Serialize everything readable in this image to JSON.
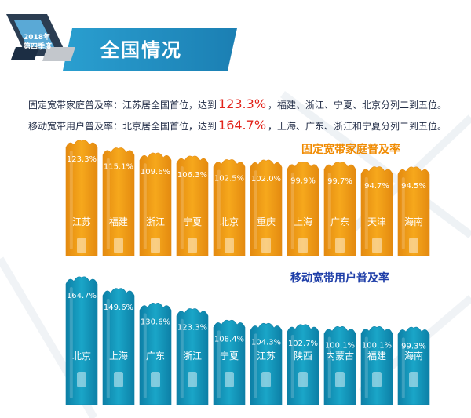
{
  "header": {
    "badge_year": "2018年",
    "badge_issue": "第四季度",
    "title": "全国情况"
  },
  "summary": [
    {
      "prefix": "固定宽带家庭普及率：江苏居全国首位，达到",
      "value": "123.3%",
      "suffix": "，福建、浙江、宁夏、北京分列二到五位。"
    },
    {
      "prefix": "移动宽带用户普及率：北京居全国首位，达到",
      "value": "164.7%",
      "suffix": "，上海、广东、浙江和宁夏分列二到五位。"
    }
  ],
  "colors": {
    "orange": "#f6a81c",
    "orange_dark": "#e48a10",
    "blue": "#1aa6c8",
    "blue_dark": "#0d7fa6",
    "title_band": "#1f8fc0",
    "highlight": "#e2231a",
    "fixed_heading": "#f08a00",
    "mobile_heading": "#1e3ea8"
  },
  "chart_data": [
    {
      "type": "bar",
      "title": "固定宽带家庭普及率",
      "categories": [
        "江苏",
        "福建",
        "浙江",
        "宁夏",
        "北京",
        "重庆",
        "上海",
        "广东",
        "天津",
        "海南"
      ],
      "values": [
        123.3,
        115.1,
        109.6,
        106.3,
        102.5,
        102.0,
        99.9,
        99.7,
        94.7,
        94.5
      ],
      "labels": [
        "123.3%",
        "115.1%",
        "109.6%",
        "106.3%",
        "102.5%",
        "102.0%",
        "99.9%",
        "99.7%",
        "94.7%",
        "94.5%"
      ],
      "xlabel": "",
      "ylabel": "",
      "grid": false
    },
    {
      "type": "bar",
      "title": "移动宽带用户普及率",
      "categories": [
        "北京",
        "上海",
        "广东",
        "浙江",
        "宁夏",
        "江苏",
        "陕西",
        "内蒙古",
        "福建",
        "海南"
      ],
      "values": [
        164.7,
        149.6,
        130.6,
        123.3,
        108.4,
        104.3,
        102.7,
        100.1,
        100.1,
        99.3
      ],
      "labels": [
        "164.7%",
        "149.6%",
        "130.6%",
        "123.3%",
        "108.4%",
        "104.3%",
        "102.7%",
        "100.1%",
        "100.1%",
        "99.3%"
      ],
      "xlabel": "",
      "ylabel": "",
      "grid": false
    }
  ]
}
